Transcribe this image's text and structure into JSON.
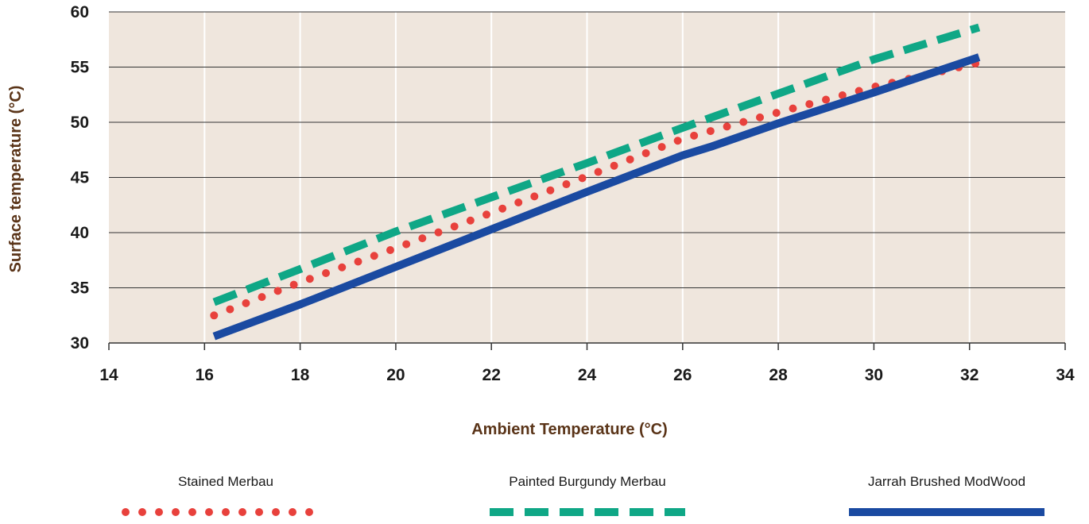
{
  "chart_data": {
    "type": "line",
    "title": "",
    "xlabel": "Ambient Temperature (°C)",
    "ylabel": "Surface temperature (°C)",
    "xlim": [
      14,
      34
    ],
    "ylim": [
      30,
      60
    ],
    "xticks": [
      "14",
      "16",
      "18",
      "20",
      "22",
      "24",
      "26",
      "28",
      "30",
      "32",
      "34"
    ],
    "yticks": [
      "30",
      "35",
      "40",
      "45",
      "50",
      "55",
      "60"
    ],
    "grid": true,
    "legend_position": "bottom",
    "background_color": "#efe6dd",
    "series": [
      {
        "name": "Stained Merbau",
        "style": "dotted",
        "color": "#e8413c",
        "x": [
          16.2,
          18,
          20,
          22,
          24,
          26,
          28,
          30,
          32.2
        ],
        "y": [
          32.5,
          35.5,
          38.6,
          41.8,
          45.1,
          48.5,
          50.9,
          53.2,
          55.4
        ]
      },
      {
        "name": "Painted Burgundy Merbau",
        "style": "dashed",
        "color": "#0fa786",
        "x": [
          16.2,
          18,
          20,
          22,
          24,
          26,
          28,
          30,
          32.2
        ],
        "y": [
          33.7,
          36.7,
          40.1,
          43.2,
          46.3,
          49.5,
          52.6,
          55.7,
          58.6
        ]
      },
      {
        "name": "Jarrah Brushed ModWood",
        "style": "solid",
        "color": "#1a4aa1",
        "x": [
          16.2,
          18,
          20,
          22,
          24,
          26,
          26.6,
          28,
          30,
          32.2
        ],
        "y": [
          30.6,
          33.5,
          36.9,
          40.3,
          43.7,
          47.0,
          47.8,
          49.9,
          52.7,
          55.9
        ]
      }
    ]
  }
}
